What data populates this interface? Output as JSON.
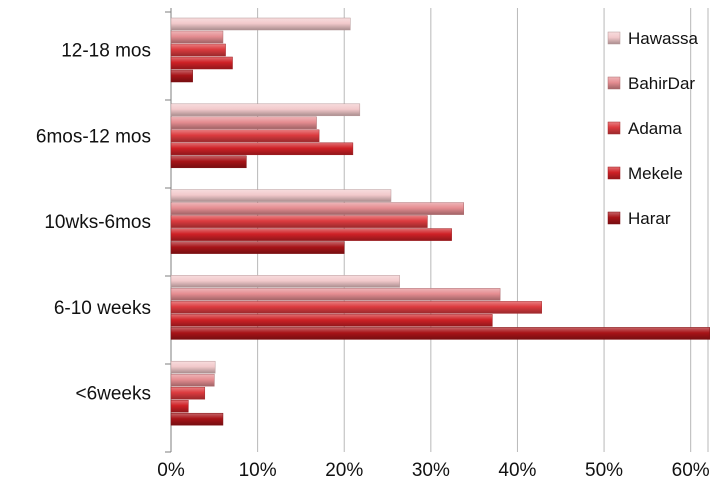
{
  "chart_data": {
    "type": "bar",
    "orientation": "horizontal",
    "title": "",
    "xlabel": "",
    "ylabel": "",
    "xlim": [
      0,
      62
    ],
    "x_ticks": [
      "0%",
      "10%",
      "20%",
      "30%",
      "40%",
      "50%",
      "60%"
    ],
    "x_tick_values": [
      0,
      10,
      20,
      30,
      40,
      50,
      60
    ],
    "grid": "vertical",
    "legend_position": "right",
    "categories": [
      "12-18 mos",
      "6mos-12 mos",
      "10wks-6mos",
      "6-10 weeks",
      "<6weeks"
    ],
    "series": [
      {
        "name": "Hawassa",
        "color": "#f2c9cb",
        "values": [
          20.7,
          21.8,
          25.4,
          26.4,
          5.1
        ]
      },
      {
        "name": "BahirDar",
        "color": "#e58d91",
        "values": [
          6.0,
          16.8,
          33.8,
          38.0,
          5.0
        ]
      },
      {
        "name": "Adama",
        "color": "#dc3b3f",
        "values": [
          6.3,
          17.1,
          29.6,
          42.8,
          3.9
        ]
      },
      {
        "name": "Mekele",
        "color": "#cf2126",
        "values": [
          7.1,
          21.0,
          32.4,
          37.1,
          2.0
        ]
      },
      {
        "name": "Harar",
        "color": "#a81418",
        "values": [
          2.5,
          8.7,
          20.0,
          62.2,
          6.0
        ]
      }
    ]
  }
}
